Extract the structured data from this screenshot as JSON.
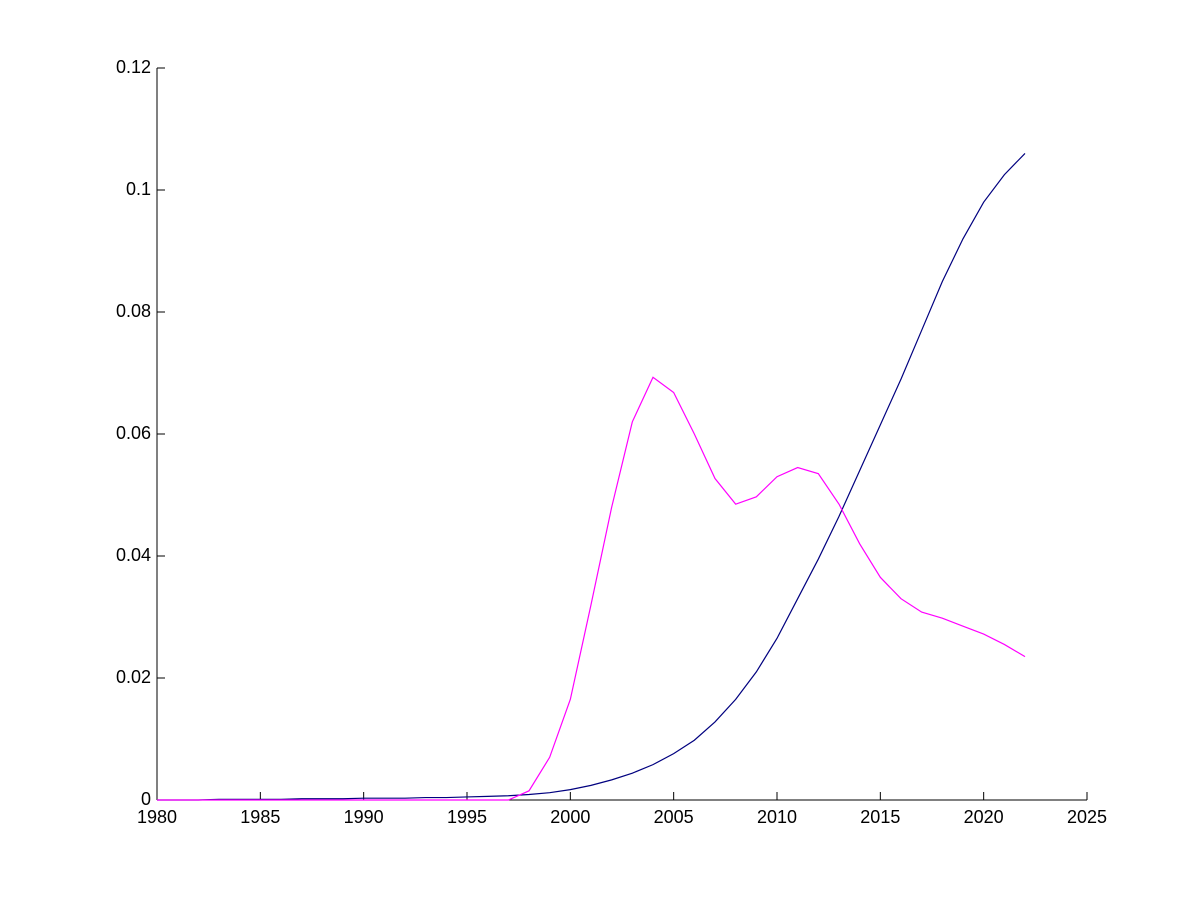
{
  "chart_data": {
    "type": "line",
    "x": [
      1980,
      1981,
      1982,
      1983,
      1984,
      1985,
      1986,
      1987,
      1988,
      1989,
      1990,
      1991,
      1992,
      1993,
      1994,
      1995,
      1996,
      1997,
      1998,
      1999,
      2000,
      2001,
      2002,
      2003,
      2004,
      2005,
      2006,
      2007,
      2008,
      2009,
      2010,
      2011,
      2012,
      2013,
      2014,
      2015,
      2016,
      2017,
      2018,
      2019,
      2020,
      2021,
      2022
    ],
    "series": [
      {
        "color": "#00007f",
        "values": [
          0,
          0,
          0,
          0.0001,
          0.0001,
          0.0001,
          0.0001,
          0.0002,
          0.0002,
          0.0002,
          0.0003,
          0.0003,
          0.0003,
          0.0004,
          0.0004,
          0.0005,
          0.0006,
          0.0007,
          0.0009,
          0.0012,
          0.0017,
          0.0024,
          0.0033,
          0.0044,
          0.0058,
          0.0076,
          0.0098,
          0.0128,
          0.0165,
          0.021,
          0.0265,
          0.033,
          0.0395,
          0.0465,
          0.054,
          0.0615,
          0.069,
          0.077,
          0.085,
          0.092,
          0.098,
          0.1025,
          0.106
        ]
      },
      {
        "color": "#ff00ff",
        "values": [
          0,
          0,
          0,
          0,
          0,
          0,
          0,
          0,
          0,
          0,
          0,
          0,
          0,
          0,
          0,
          0,
          0,
          0,
          0.0015,
          0.007,
          0.0165,
          0.032,
          0.048,
          0.062,
          0.0693,
          0.0668,
          0.06,
          0.0527,
          0.0485,
          0.0497,
          0.053,
          0.0545,
          0.0535,
          0.0485,
          0.042,
          0.0365,
          0.033,
          0.0308,
          0.0298,
          0.0285,
          0.0272,
          0.0255,
          0.0235
        ]
      }
    ],
    "xlim": [
      1980,
      2025
    ],
    "xticks": [
      1980,
      1985,
      1990,
      1995,
      2000,
      2005,
      2010,
      2015,
      2020,
      2025
    ],
    "ylim": [
      0,
      0.12
    ],
    "yticks": [
      0,
      0.02,
      0.04,
      0.06,
      0.08,
      0.1,
      0.12
    ]
  }
}
